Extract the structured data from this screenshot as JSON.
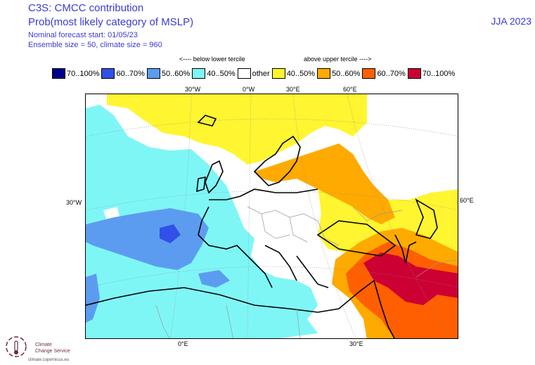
{
  "header": {
    "line1": "C3S: CMCC contribution",
    "line2": "Prob(most likely category of MSLP)",
    "line3": "Nominal forecast start: 01/05/23",
    "line4": "Ensemble size = 50, climate size = 960",
    "season": "JJA 2023"
  },
  "legend": {
    "below_label": "<---- below lower tercile",
    "above_label": "above upper tercile ---->",
    "items": [
      {
        "label": "70..100%",
        "color": "#00008b"
      },
      {
        "label": "60..70%",
        "color": "#3050e8"
      },
      {
        "label": "50..60%",
        "color": "#5c9cf0"
      },
      {
        "label": "40..50%",
        "color": "#7ff6f6"
      },
      {
        "label": "other",
        "color": "#ffffff"
      },
      {
        "label": "40..50%",
        "color": "#fff530"
      },
      {
        "label": "50..60%",
        "color": "#ffaa00"
      },
      {
        "label": "60..70%",
        "color": "#ff5f00"
      },
      {
        "label": "70..100%",
        "color": "#cc0033"
      }
    ]
  },
  "axes": {
    "top": [
      "30°W",
      "0°W",
      "30°E",
      "60°E"
    ],
    "left": "30°W",
    "right": "60°E",
    "bottom": [
      "0°E",
      "30°E"
    ]
  },
  "logo": {
    "line1": "Climate",
    "line2": "Change Service",
    "url": "climate.copernicus.eu",
    "color": "#6b2a4a"
  }
}
